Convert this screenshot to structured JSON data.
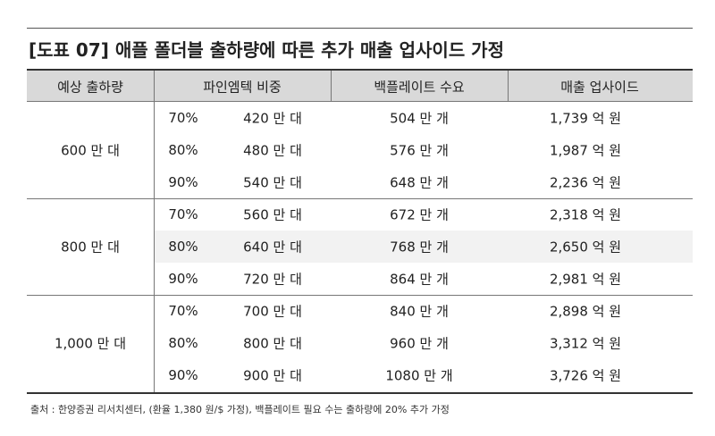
{
  "title": "[도표 07] 애플 폴더블 출하량에 따른 추가 매출 업사이드 가정",
  "table": {
    "headers": [
      "예상 출하량",
      "파인엠텍 비중",
      "백플레이트 수요",
      "매출 업사이드"
    ],
    "groups": [
      {
        "label": "600 만 대",
        "rows": [
          [
            "70%",
            "420 만 대",
            "504 만 개",
            "1,739 억 원"
          ],
          [
            "80%",
            "480 만 대",
            "576 만 개",
            "1,987 억 원"
          ],
          [
            "90%",
            "540 만 대",
            "648 만 개",
            "2,236 억 원"
          ]
        ]
      },
      {
        "label": "800 만 대",
        "rows": [
          [
            "70%",
            "560 만 대",
            "672 만 개",
            "2,318 억 원"
          ],
          [
            "80%",
            "640 만 대",
            "768 만 개",
            "2,650 억 원"
          ],
          [
            "90%",
            "720 만 대",
            "864 만 개",
            "2,981 억 원"
          ]
        ]
      },
      {
        "label": "1,000 만 대",
        "rows": [
          [
            "70%",
            "700 만 대",
            "840 만 개",
            "2,898 억 원"
          ],
          [
            "80%",
            "800 만 대",
            "960 만 개",
            "3,312 억 원"
          ],
          [
            "90%",
            "900 만 대",
            "1080 만 개",
            "3,726 억 원"
          ]
        ]
      }
    ]
  },
  "footnote": "출처 : 한양증권 리서치센터, (환율 1,380 원/$ 가정), 백플레이트 필요 수는 출하량에 20% 추가 가정"
}
